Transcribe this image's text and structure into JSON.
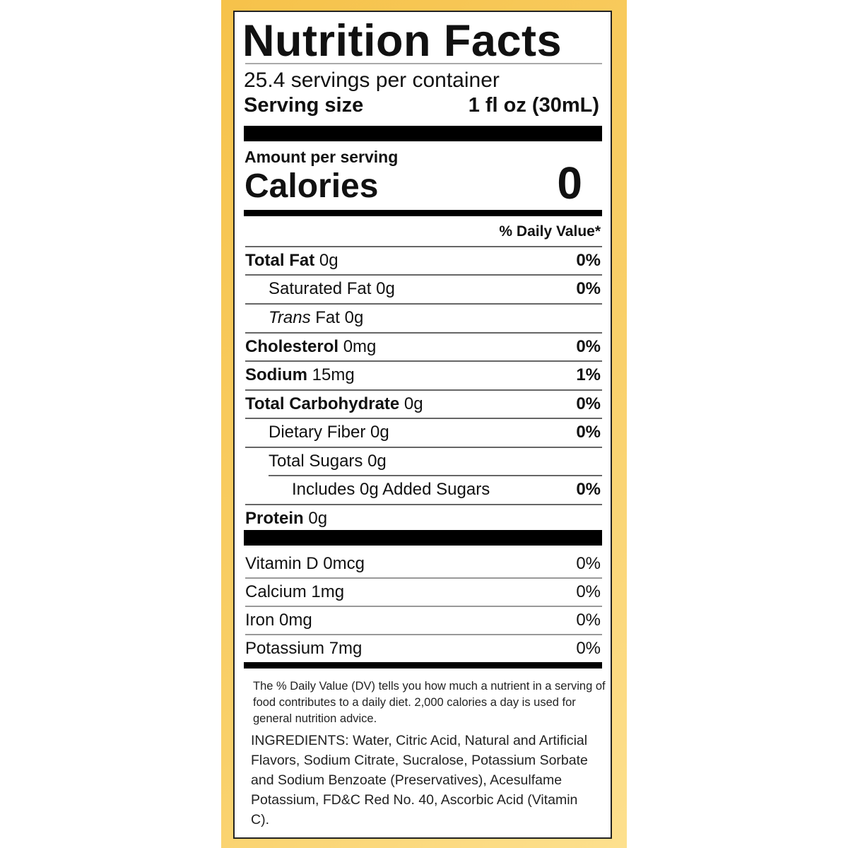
{
  "header": {
    "title": "Nutrition Facts",
    "servings": "25.4 servings per container",
    "serving_size_label": "Serving size",
    "serving_size": "1 fl oz (30mL)"
  },
  "calories": {
    "amount_label": "Amount per serving",
    "label": "Calories",
    "value": "0"
  },
  "daily_value_header": "% Daily Value*",
  "nutrients": [
    {
      "name": "Total Fat",
      "amount": "0g",
      "dv": "0%"
    },
    {
      "name": "Saturated Fat",
      "amount": "0g",
      "dv": "0%"
    },
    {
      "name_italic": "Trans",
      "name": "Fat",
      "amount": "0g"
    },
    {
      "name": "Cholesterol",
      "amount": "0mg",
      "dv": "0%"
    },
    {
      "name": "Sodium",
      "amount": "15mg",
      "dv": "1%"
    },
    {
      "name": "Total Carbohydrate",
      "amount": "0g",
      "dv": "0%"
    },
    {
      "name": "Dietary Fiber",
      "amount": "0g",
      "dv": "0%"
    },
    {
      "name": "Total Sugars",
      "amount": "0g"
    },
    {
      "name": "Includes 0g Added Sugars",
      "dv": "0%"
    },
    {
      "name": "Protein",
      "amount": "0g"
    }
  ],
  "vitamins": [
    {
      "name": "Vitamin D 0mcg",
      "dv": "0%"
    },
    {
      "name": "Calcium 1mg",
      "dv": "0%"
    },
    {
      "name": "Iron 0mg",
      "dv": "0%"
    },
    {
      "name": "Potassium 7mg",
      "dv": "0%"
    }
  ],
  "footnote": "The % Daily Value (DV) tells you how much a nutrient in a serving of food contributes to a daily diet. 2,000 calories a day is used for general nutrition advice.",
  "ingredients": "INGREDIENTS: Water, Citric Acid, Natural and Artificial Flavors, Sodium Citrate, Sucralose, Potassium Sorbate and Sodium Benzoate (Preservatives), Acesulfame Potassium, FD&C Red No. 40, Ascorbic Acid (Vitamin C)."
}
